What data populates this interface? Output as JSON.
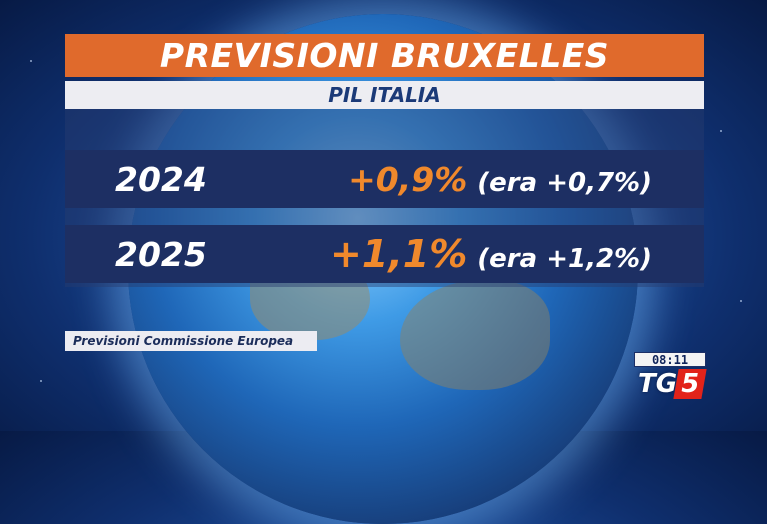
{
  "header": {
    "title": "PREVISIONI BRUXELLES",
    "subtitle": "PIL ITALIA"
  },
  "rows": [
    {
      "year": "2024",
      "value": "+0,9%",
      "previous": "(era +0,7%)"
    },
    {
      "year": "2025",
      "value": "+1,1%",
      "previous": "(era +1,2%)"
    }
  ],
  "source": "Previsioni Commissione Europea",
  "clock": "08:11",
  "logo": {
    "text": "TG",
    "number": "5"
  },
  "colors": {
    "title_bar": "#e06a2c",
    "value_orange": "#f0892c",
    "row_navy": "#1d2f63",
    "logo_red": "#e2231a"
  }
}
